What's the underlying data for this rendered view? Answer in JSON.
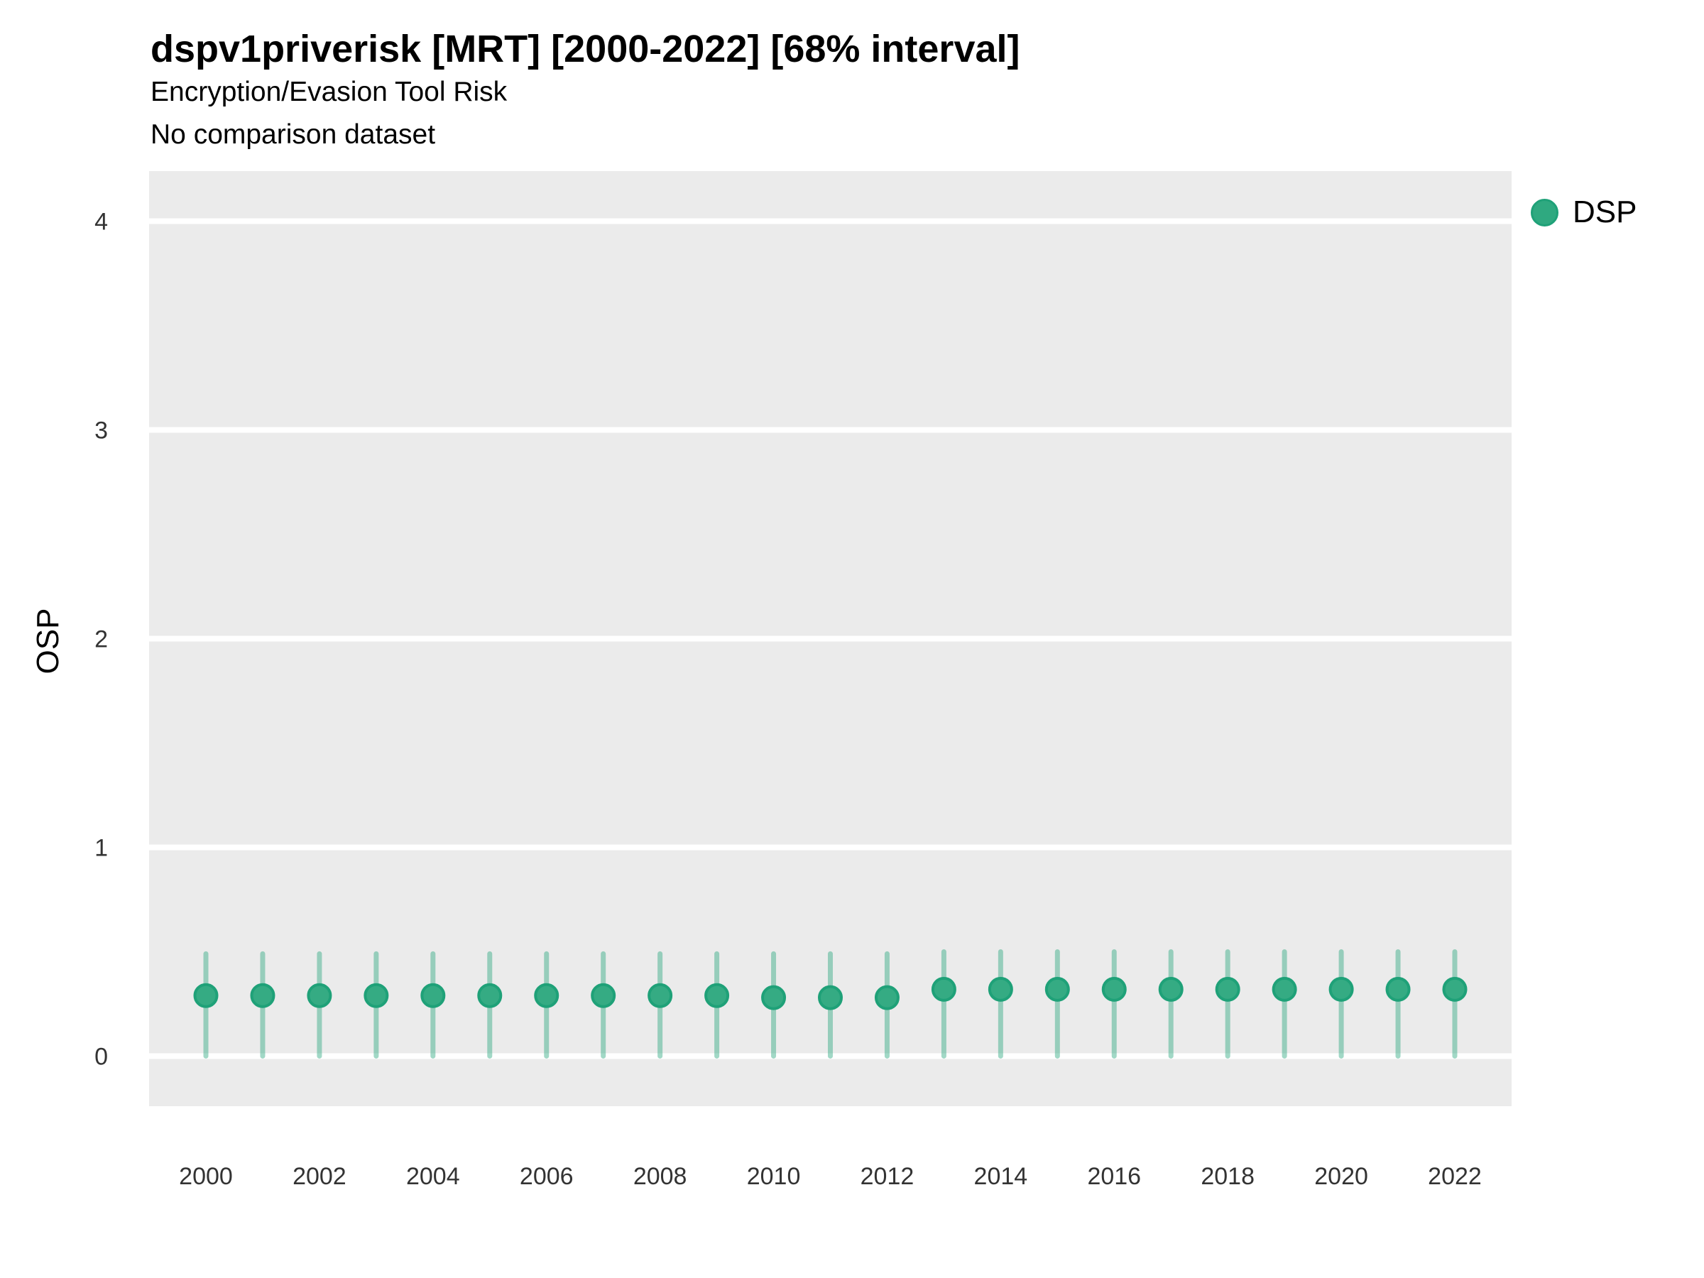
{
  "header": {
    "title": "dspv1priverisk [MRT] [2000-2022] [68% interval]",
    "subtitle": "Encryption/Evasion Tool Risk",
    "note": "No comparison dataset"
  },
  "legend": {
    "position": "right",
    "items": [
      {
        "label": "DSP",
        "swatch": "legend-dot-icon",
        "color": "#2fa980"
      }
    ]
  },
  "chart_data": {
    "type": "pointrange",
    "title": "dspv1priverisk [MRT] [2000-2022] [68% interval]",
    "subtitle": "Encryption/Evasion Tool Risk",
    "note": "No comparison dataset",
    "interval_level": "68%",
    "xlabel": "",
    "ylabel": "OSP",
    "x": [
      2000,
      2001,
      2002,
      2003,
      2004,
      2005,
      2006,
      2007,
      2008,
      2009,
      2010,
      2011,
      2012,
      2013,
      2014,
      2015,
      2016,
      2017,
      2018,
      2019,
      2020,
      2021,
      2022
    ],
    "x_tick_labels": [
      "2000",
      "2002",
      "2004",
      "2006",
      "2008",
      "2010",
      "2012",
      "2014",
      "2016",
      "2018",
      "2020",
      "2022"
    ],
    "y_ticks": [
      0,
      1,
      2,
      3,
      4
    ],
    "ylim": [
      -0.24,
      4.24
    ],
    "grid": "horizontal-major-only",
    "legend_position": "right",
    "series": [
      {
        "name": "DSP",
        "color": "#2fa980",
        "point_fill": "#35ab83",
        "point_stroke": "#1fa178",
        "interval_color": "rgba(47,169,128,0.45)",
        "points": [
          {
            "x": 2000,
            "y": 0.29,
            "lo": 0.0,
            "hi": 0.49
          },
          {
            "x": 2001,
            "y": 0.29,
            "lo": 0.0,
            "hi": 0.49
          },
          {
            "x": 2002,
            "y": 0.29,
            "lo": 0.0,
            "hi": 0.49
          },
          {
            "x": 2003,
            "y": 0.29,
            "lo": 0.0,
            "hi": 0.49
          },
          {
            "x": 2004,
            "y": 0.29,
            "lo": 0.0,
            "hi": 0.49
          },
          {
            "x": 2005,
            "y": 0.29,
            "lo": 0.0,
            "hi": 0.49
          },
          {
            "x": 2006,
            "y": 0.29,
            "lo": 0.0,
            "hi": 0.49
          },
          {
            "x": 2007,
            "y": 0.29,
            "lo": 0.0,
            "hi": 0.49
          },
          {
            "x": 2008,
            "y": 0.29,
            "lo": 0.0,
            "hi": 0.49
          },
          {
            "x": 2009,
            "y": 0.29,
            "lo": 0.0,
            "hi": 0.49
          },
          {
            "x": 2010,
            "y": 0.28,
            "lo": 0.0,
            "hi": 0.49
          },
          {
            "x": 2011,
            "y": 0.28,
            "lo": 0.0,
            "hi": 0.49
          },
          {
            "x": 2012,
            "y": 0.28,
            "lo": 0.0,
            "hi": 0.49
          },
          {
            "x": 2013,
            "y": 0.32,
            "lo": 0.0,
            "hi": 0.5
          },
          {
            "x": 2014,
            "y": 0.32,
            "lo": 0.0,
            "hi": 0.5
          },
          {
            "x": 2015,
            "y": 0.32,
            "lo": 0.0,
            "hi": 0.5
          },
          {
            "x": 2016,
            "y": 0.32,
            "lo": 0.0,
            "hi": 0.5
          },
          {
            "x": 2017,
            "y": 0.32,
            "lo": 0.0,
            "hi": 0.5
          },
          {
            "x": 2018,
            "y": 0.32,
            "lo": 0.0,
            "hi": 0.5
          },
          {
            "x": 2019,
            "y": 0.32,
            "lo": 0.0,
            "hi": 0.5
          },
          {
            "x": 2020,
            "y": 0.32,
            "lo": 0.0,
            "hi": 0.5
          },
          {
            "x": 2021,
            "y": 0.32,
            "lo": 0.0,
            "hi": 0.5
          },
          {
            "x": 2022,
            "y": 0.32,
            "lo": 0.0,
            "hi": 0.5
          }
        ]
      }
    ],
    "style": {
      "panel_bg": "#ebebeb",
      "gridline_color": "#ffffff",
      "axis_text_color": "#333333",
      "title_color": "#000000"
    }
  }
}
